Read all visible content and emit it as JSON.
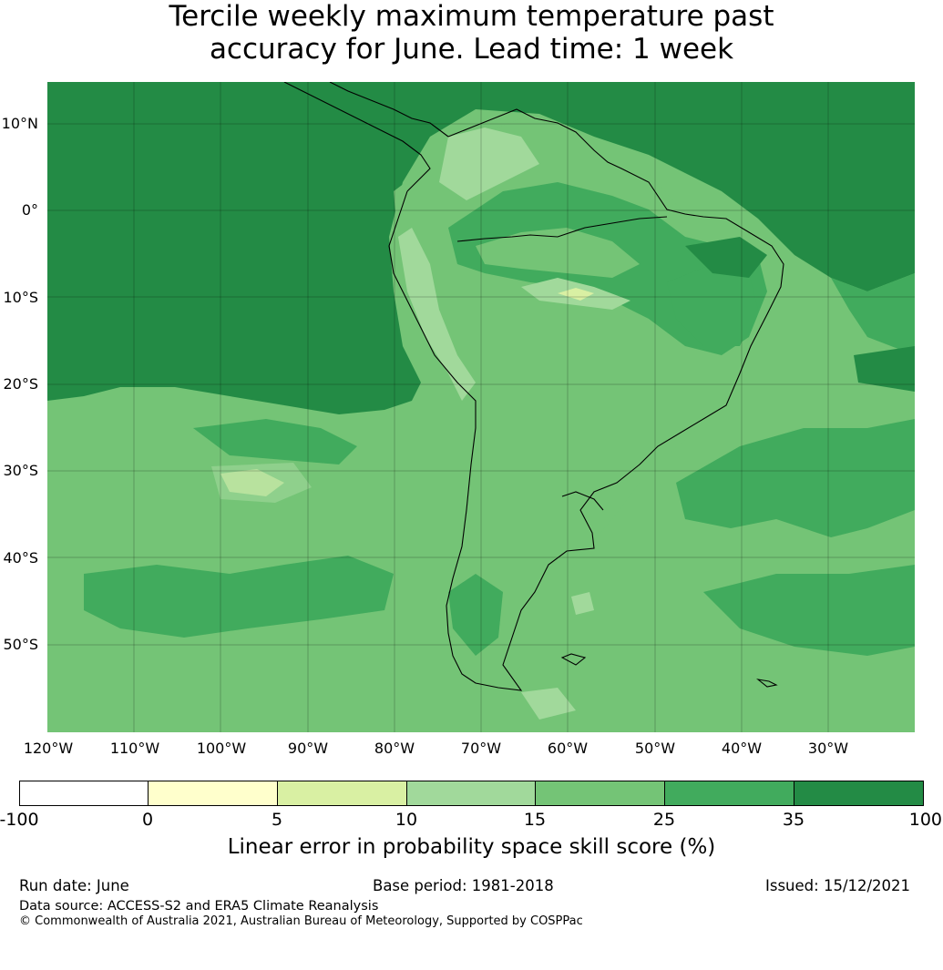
{
  "title": {
    "line1": "Tercile weekly maximum temperature past",
    "line2": "accuracy for June. Lead time: 1 week"
  },
  "map": {
    "lat_labels": [
      "10°N",
      "0°",
      "10°S",
      "20°S",
      "30°S",
      "40°S",
      "50°S"
    ],
    "lon_labels": [
      "120°W",
      "110°W",
      "100°W",
      "90°W",
      "80°W",
      "70°W",
      "60°W",
      "50°W",
      "40°W",
      "30°W"
    ],
    "colors": {
      "c35_100": "#238b45",
      "c25_35": "#41ab5d",
      "c15_25": "#74c476",
      "c10_15": "#a1d99b",
      "c5_10": "#d9f0a3",
      "c0_5": "#ffffcc",
      "coast": "#000000"
    }
  },
  "colorbar": {
    "ticks": [
      "-100",
      "0",
      "5",
      "10",
      "15",
      "25",
      "35",
      "100"
    ],
    "colors": [
      "#ffffff",
      "#ffffcc",
      "#d9f0a3",
      "#a1d99b",
      "#74c476",
      "#41ab5d",
      "#238b45"
    ],
    "label": "Linear error in probability space skill score (%)"
  },
  "footer": {
    "run_date": "Run date: June",
    "base_period": "Base period: 1981-2018",
    "issued": "Issued: 15/12/2021",
    "data_source": "Data source: ACCESS-S2 and ERA5 Climate Reanalysis",
    "copyright": "© Commonwealth of Australia 2021, Australian Bureau of Meteorology, Supported by COSPPac"
  }
}
